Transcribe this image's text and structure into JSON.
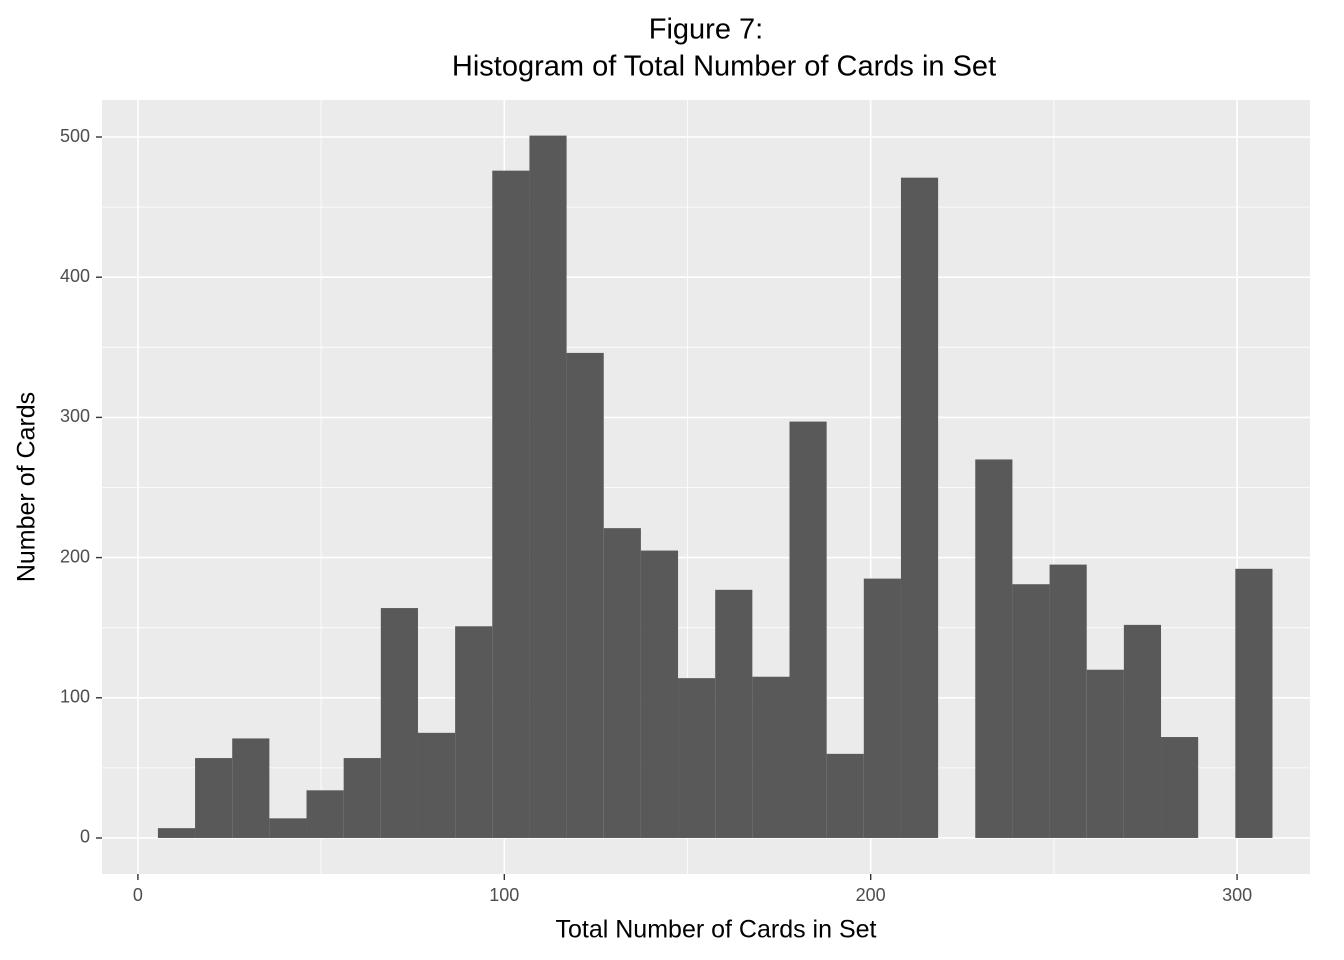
{
  "chart_data": {
    "type": "histogram",
    "title": [
      "Figure 7:",
      "Histogram of Total Number of Cards in Set"
    ],
    "x_label": "Total Number of Cards in Set",
    "y_label": "Number of Cards",
    "bins": [
      5.46,
      15.6,
      25.74,
      35.88,
      46.02,
      56.16,
      66.3,
      76.44,
      86.58,
      96.72,
      106.86,
      117,
      127.14,
      137.28,
      147.42,
      157.56,
      167.7,
      177.84,
      187.98,
      198.12,
      208.26,
      218.4,
      228.54,
      238.68,
      248.82,
      258.96,
      269.1,
      279.24,
      289.38,
      299.52,
      309.66
    ],
    "values": [
      7,
      57,
      71,
      14,
      34,
      57,
      164,
      75,
      151,
      476,
      501,
      346,
      221,
      205,
      114,
      177,
      115,
      297,
      60,
      185,
      471,
      0,
      270,
      181,
      195,
      120,
      152,
      72,
      0,
      192
    ],
    "color": "#595959",
    "xlim": [
      -9.8,
      319.9
    ],
    "ylim": [
      -25.7,
      526.4
    ],
    "xticks": [
      0,
      100,
      200,
      300
    ],
    "yticks": [
      0,
      100,
      200,
      300,
      400,
      500
    ],
    "grid": true,
    "minor_grid": true
  }
}
